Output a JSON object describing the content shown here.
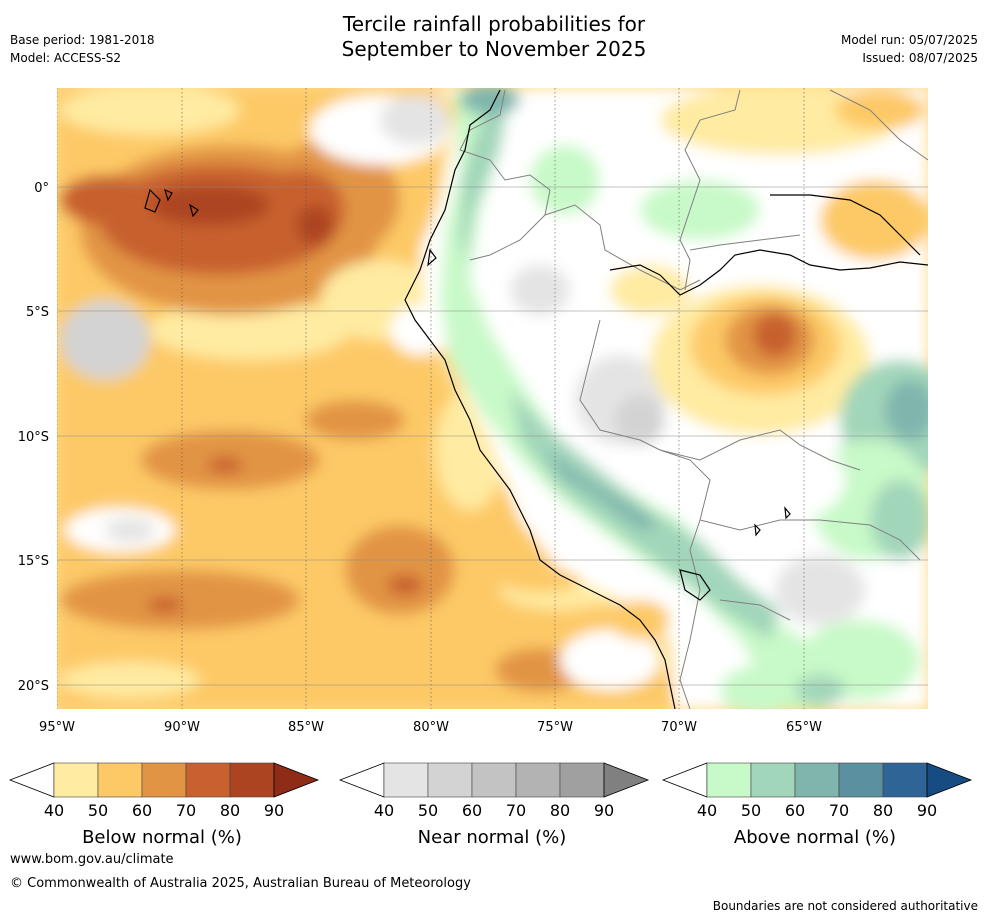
{
  "header": {
    "title_line1": "Tercile rainfall probabilities for",
    "title_line2": "September to November 2025",
    "base_period": "Base period: 1981-2018",
    "model": "Model: ACCESS-S2",
    "model_run": "Model run: 05/07/2025",
    "issued": "Issued: 08/07/2025"
  },
  "map": {
    "lon_labels": [
      "95°W",
      "90°W",
      "85°W",
      "80°W",
      "75°W",
      "70°W",
      "65°W"
    ],
    "lat_labels": [
      "0°",
      "5°S",
      "10°S",
      "15°S",
      "20°S"
    ],
    "lon_values": [
      -95,
      -90,
      -85,
      -80,
      -75,
      -70,
      -65
    ],
    "lat_values": [
      0,
      -5,
      -10,
      -15,
      -20
    ],
    "lon_range": [
      -95,
      -60
    ],
    "lat_range": [
      -21,
      4
    ],
    "gridlines": true
  },
  "legends": [
    {
      "title": "Below normal (%)",
      "ticks": [
        "40",
        "50",
        "60",
        "70",
        "80",
        "90"
      ],
      "colors": [
        "#ffeba1",
        "#fdc966",
        "#e29445",
        "#c8602f",
        "#ad4421",
        "#8e2c17"
      ]
    },
    {
      "title": "Near normal (%)",
      "ticks": [
        "40",
        "50",
        "60",
        "70",
        "80",
        "90"
      ],
      "colors": [
        "#e4e4e4",
        "#d3d3d3",
        "#c3c3c3",
        "#b3b3b3",
        "#a0a0a0",
        "#808080"
      ]
    },
    {
      "title": "Above normal (%)",
      "ticks": [
        "40",
        "50",
        "60",
        "70",
        "80",
        "90"
      ],
      "colors": [
        "#c8f9c8",
        "#a2d6ba",
        "#7fb5ad",
        "#5a909f",
        "#2f6496",
        "#164c82"
      ]
    }
  ],
  "footer": {
    "website": "www.bom.gov.au/climate",
    "copyright": "© Commonwealth of Australia 2025, Australian Bureau of Meteorology",
    "disclaimer": "Boundaries are not considered authoritative"
  }
}
